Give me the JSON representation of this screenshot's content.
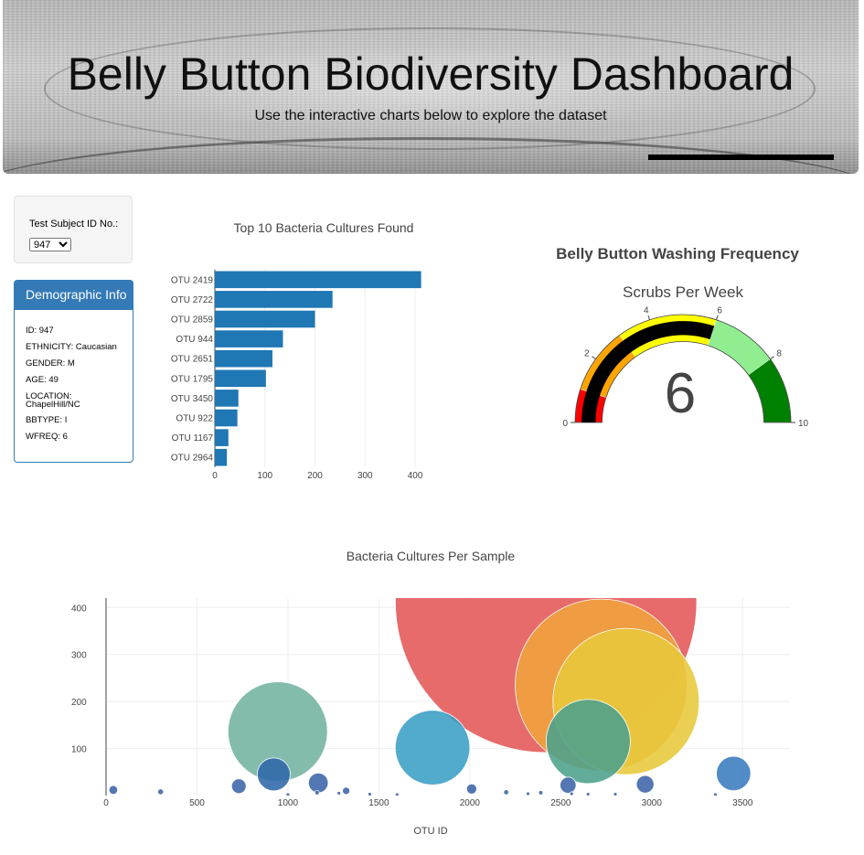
{
  "header": {
    "title": "Belly Button Biodiversity Dashboard",
    "subtitle": "Use the interactive charts below to explore the dataset"
  },
  "selector": {
    "label": "Test Subject ID No.:",
    "selected": "947"
  },
  "demographics": {
    "title": "Demographic Info",
    "lines": [
      "ID: 947",
      "ETHNICITY: Caucasian",
      "GENDER: M",
      "AGE: 49",
      "LOCATION: ChapelHill/NC",
      "BBTYPE: I",
      "WFREQ: 6"
    ]
  },
  "chart_data": [
    {
      "type": "bar",
      "orientation": "horizontal",
      "title": "Top 10 Bacteria Cultures Found",
      "categories": [
        "OTU 2419",
        "OTU 2722",
        "OTU 2859",
        "OTU 944",
        "OTU 2651",
        "OTU 1795",
        "OTU 3450",
        "OTU 922",
        "OTU 1167",
        "OTU 2964"
      ],
      "values": [
        412,
        235,
        200,
        136,
        115,
        102,
        47,
        45,
        27,
        24
      ],
      "xlim": [
        0,
        420
      ],
      "xticks": [
        0,
        100,
        200,
        300,
        400
      ],
      "color": "#1f77b4"
    },
    {
      "type": "gauge",
      "title": "Belly Button Washing Frequency",
      "subtitle": "Scrubs Per Week",
      "value": 6,
      "range": [
        0,
        10
      ],
      "ticks": [
        0,
        2,
        4,
        6,
        8,
        10
      ],
      "steps": [
        {
          "range": [
            0,
            1
          ],
          "color": "#ff0000"
        },
        {
          "range": [
            1,
            3
          ],
          "color": "#ffa500"
        },
        {
          "range": [
            3,
            6
          ],
          "color": "#ffff00"
        },
        {
          "range": [
            6,
            8
          ],
          "color": "#90ee90"
        },
        {
          "range": [
            8,
            10
          ],
          "color": "#008000"
        }
      ],
      "bar_color": "#000000"
    },
    {
      "type": "scatter",
      "subtype": "bubble",
      "title": "Bacteria Cultures Per Sample",
      "xlabel": "OTU ID",
      "xlim": [
        0,
        3760
      ],
      "ylim": [
        0,
        420
      ],
      "xticks": [
        0,
        500,
        1000,
        1500,
        2000,
        2500,
        3000,
        3500
      ],
      "yticks": [
        100,
        200,
        300,
        400
      ],
      "points": [
        {
          "x": 2419,
          "y": 412,
          "color": "#e45756"
        },
        {
          "x": 2722,
          "y": 235,
          "color": "#f0a33c"
        },
        {
          "x": 2859,
          "y": 200,
          "color": "#e7c83a"
        },
        {
          "x": 944,
          "y": 136,
          "color": "#72b3a2"
        },
        {
          "x": 2651,
          "y": 115,
          "color": "#4ca08c"
        },
        {
          "x": 1795,
          "y": 102,
          "color": "#3a9ec6"
        },
        {
          "x": 3450,
          "y": 47,
          "color": "#3a7cbf"
        },
        {
          "x": 922,
          "y": 45,
          "color": "#2e68a8"
        },
        {
          "x": 1167,
          "y": 27,
          "color": "#3b64a9"
        },
        {
          "x": 2964,
          "y": 24,
          "color": "#3b64a9"
        },
        {
          "x": 2540,
          "y": 22,
          "color": "#3b64a9"
        },
        {
          "x": 730,
          "y": 20,
          "color": "#3b64a9"
        },
        {
          "x": 2010,
          "y": 14,
          "color": "#3b64a9"
        },
        {
          "x": 40,
          "y": 12,
          "color": "#3b64a9"
        },
        {
          "x": 1320,
          "y": 10,
          "color": "#3b64a9"
        },
        {
          "x": 300,
          "y": 8,
          "color": "#3b64a9"
        },
        {
          "x": 2200,
          "y": 7,
          "color": "#3b64a9"
        },
        {
          "x": 2390,
          "y": 6,
          "color": "#3b64a9"
        },
        {
          "x": 1160,
          "y": 6,
          "color": "#3b64a9"
        },
        {
          "x": 1280,
          "y": 5,
          "color": "#3b64a9"
        },
        {
          "x": 2320,
          "y": 4,
          "color": "#3b64a9"
        },
        {
          "x": 2560,
          "y": 4,
          "color": "#3b64a9"
        },
        {
          "x": 2800,
          "y": 3,
          "color": "#3b64a9"
        },
        {
          "x": 1450,
          "y": 3,
          "color": "#3b64a9"
        },
        {
          "x": 2650,
          "y": 3,
          "color": "#3b64a9"
        },
        {
          "x": 3350,
          "y": 2,
          "color": "#3b64a9"
        },
        {
          "x": 1600,
          "y": 2,
          "color": "#3b64a9"
        },
        {
          "x": 1000,
          "y": 2,
          "color": "#3b64a9"
        }
      ]
    }
  ]
}
